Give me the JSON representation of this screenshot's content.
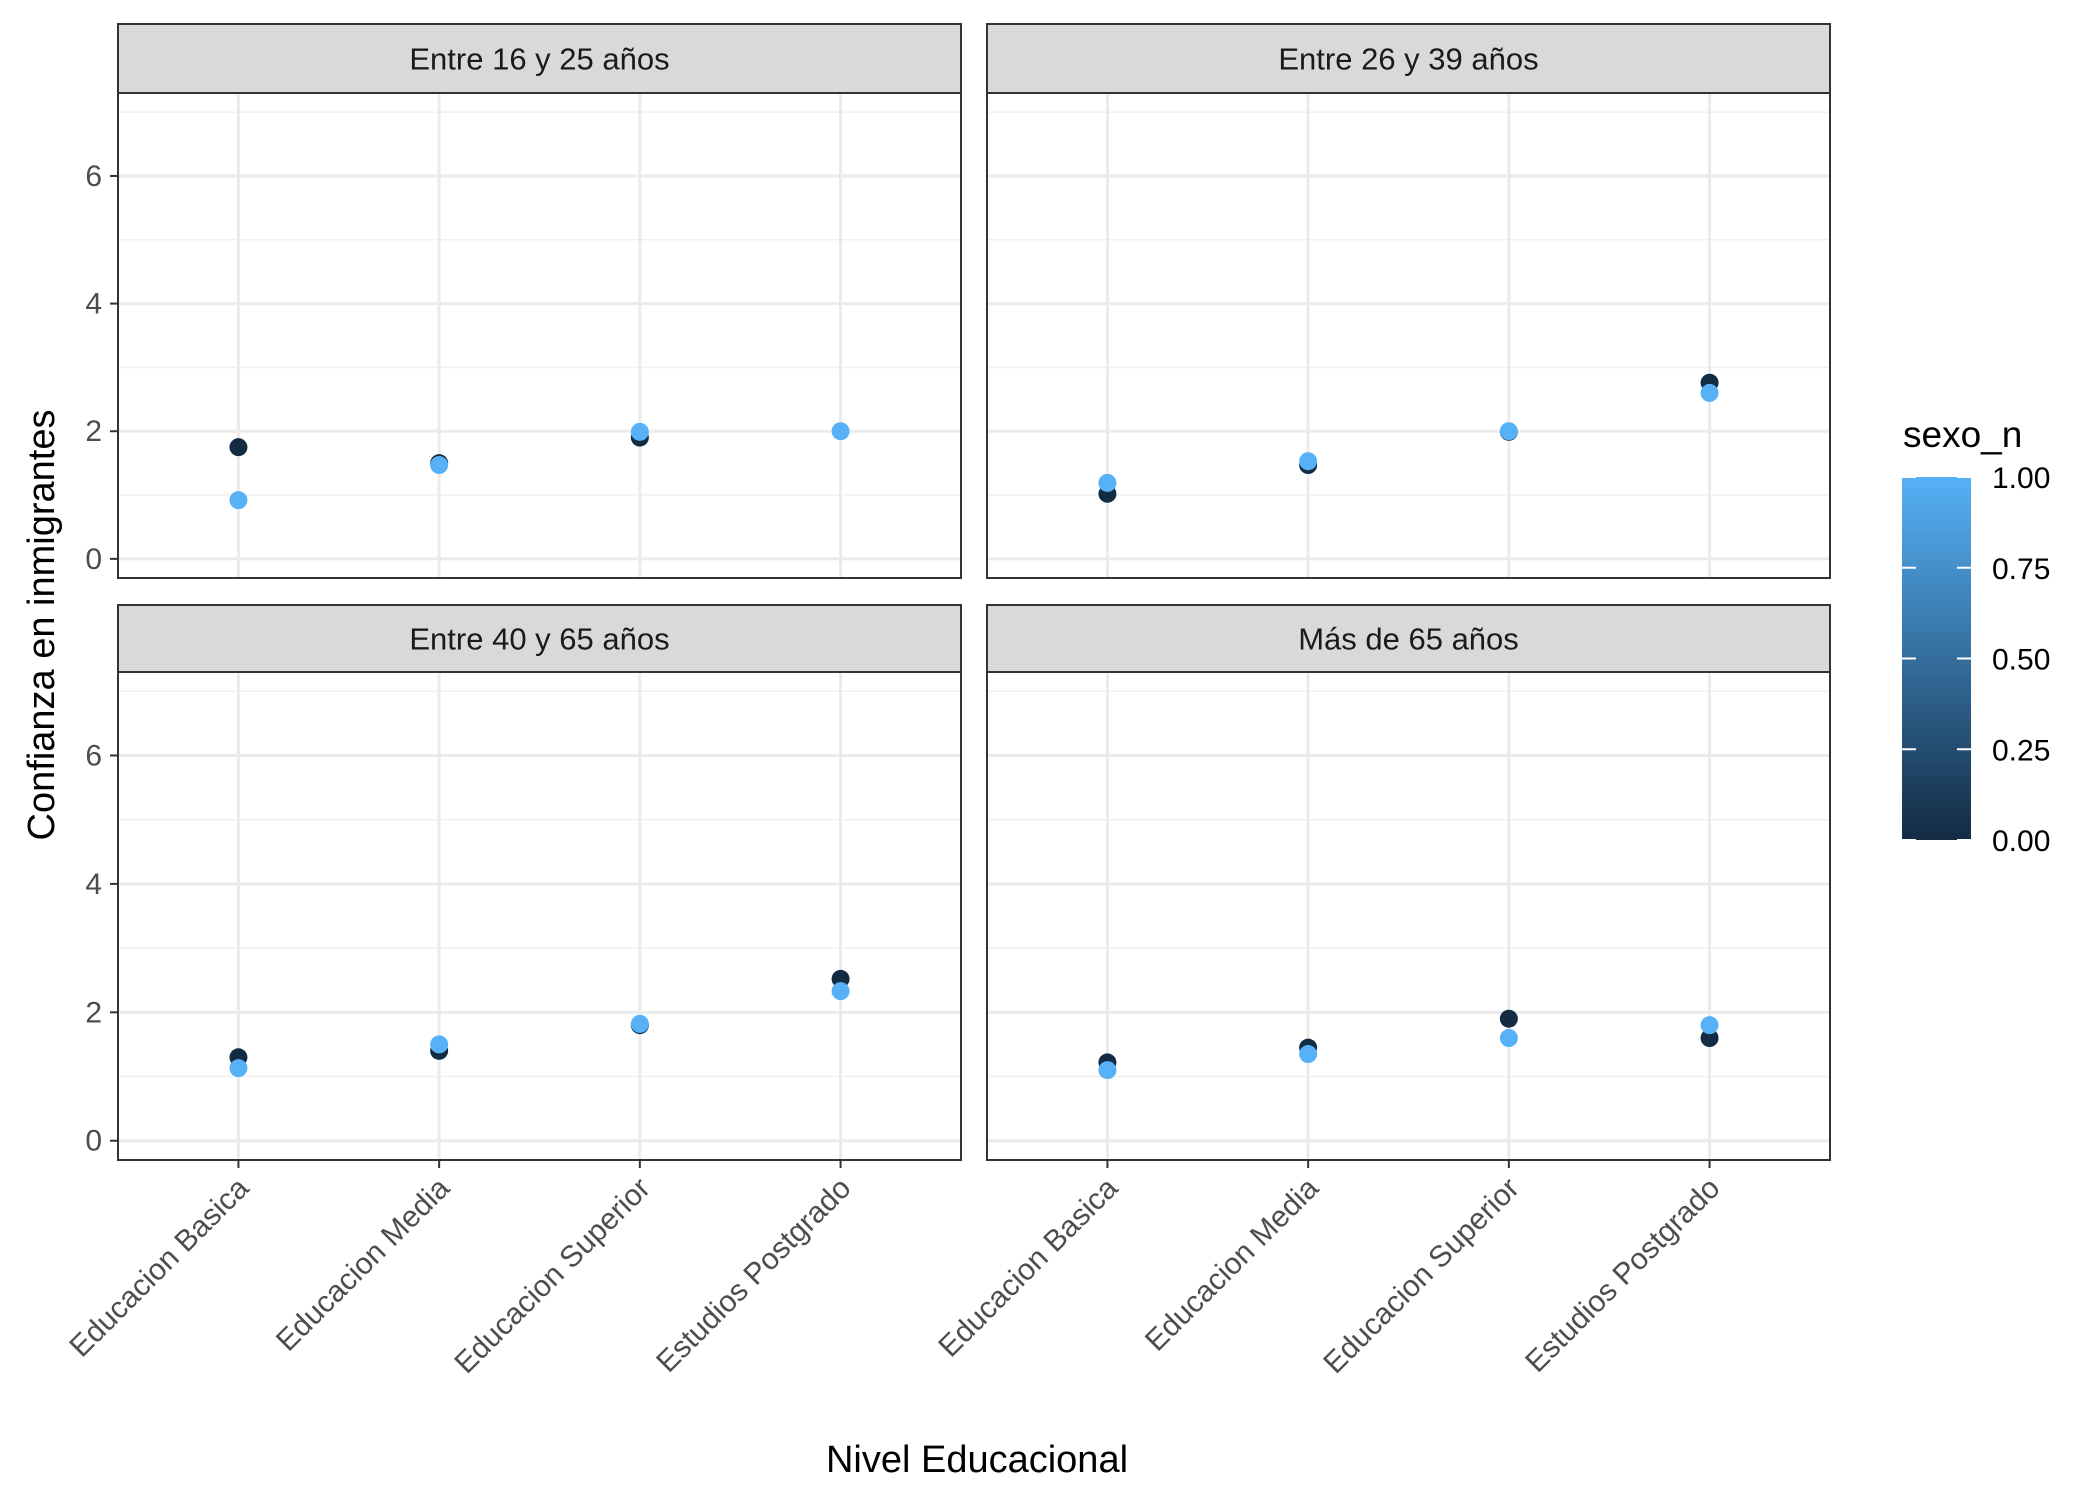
{
  "chart_data": {
    "type": "scatter",
    "facet_type": "facet_wrap",
    "xlabel": "Nivel Educacional",
    "ylabel": "Confianza en inmigrantes",
    "categories": [
      "Educacion Basica",
      "Educacion Media",
      "Educacion Superior",
      "Estudios Postgrado"
    ],
    "ylim": [
      -0.3,
      7.3
    ],
    "y_ticks": [
      0,
      2,
      4,
      6
    ],
    "grid": true,
    "legend": {
      "title": "sexo_n",
      "position": "right",
      "type": "continuous",
      "low_color": "#132B43",
      "high_color": "#56B1F7",
      "breaks": [
        0,
        0.25,
        0.5,
        0.75,
        1
      ],
      "labels": [
        "0.00",
        "0.25",
        "0.50",
        "0.75",
        "1.00"
      ]
    },
    "panels": [
      {
        "title": "Entre 16 y 25 años",
        "series": [
          {
            "sexo_n": 0,
            "values": [
              1.75,
              1.5,
              1.9,
              null
            ]
          },
          {
            "sexo_n": 1,
            "values": [
              0.92,
              1.47,
              1.99,
              2.0
            ]
          }
        ]
      },
      {
        "title": "Entre 26 y 39 años",
        "series": [
          {
            "sexo_n": 0,
            "values": [
              1.02,
              1.47,
              1.99,
              2.76
            ]
          },
          {
            "sexo_n": 1,
            "values": [
              1.19,
              1.53,
              2.0,
              2.6
            ]
          }
        ]
      },
      {
        "title": "Entre 40 y 65 años",
        "series": [
          {
            "sexo_n": 0,
            "values": [
              1.3,
              1.4,
              1.8,
              2.52
            ]
          },
          {
            "sexo_n": 1,
            "values": [
              1.13,
              1.5,
              1.82,
              2.33
            ]
          }
        ]
      },
      {
        "title": "Más de 65 años",
        "series": [
          {
            "sexo_n": 0,
            "values": [
              1.22,
              1.45,
              1.9,
              1.6
            ]
          },
          {
            "sexo_n": 1,
            "values": [
              1.1,
              1.35,
              1.6,
              1.8
            ]
          }
        ]
      }
    ]
  }
}
